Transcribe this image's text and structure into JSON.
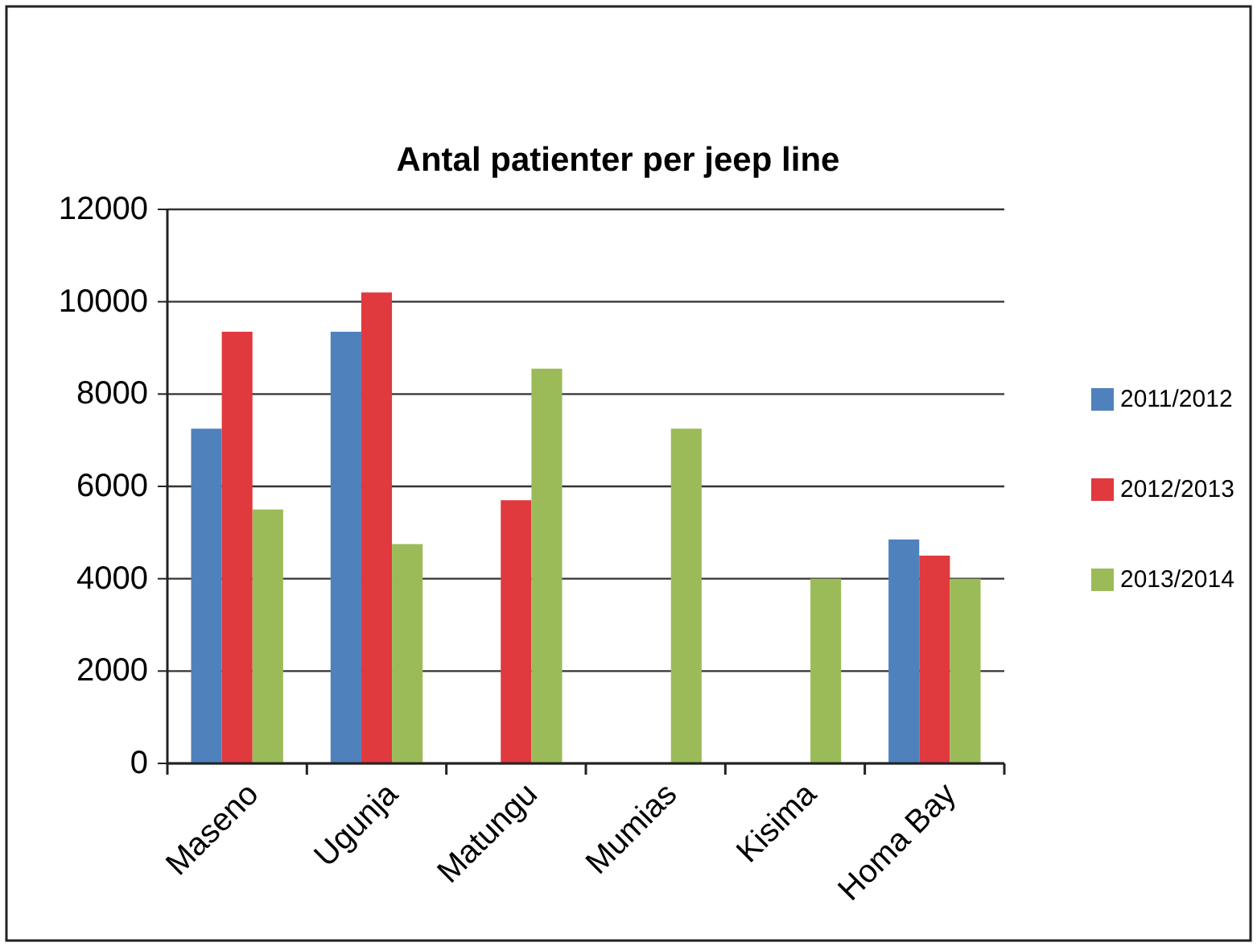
{
  "chart_data": {
    "type": "bar",
    "title": "Antal patienter per jeep line",
    "categories": [
      "Maseno",
      "Ugunja",
      "Matungu",
      "Mumias",
      "Kisima",
      "Homa Bay"
    ],
    "series": [
      {
        "name": "2011/2012",
        "color": "#4f81bd",
        "values": [
          7250,
          9350,
          null,
          null,
          null,
          4850
        ]
      },
      {
        "name": "2012/2013",
        "color": "#e0393e",
        "values": [
          9350,
          10200,
          5700,
          null,
          null,
          4500
        ]
      },
      {
        "name": "2013/2014",
        "color": "#9bbb59",
        "values": [
          5500,
          4750,
          8550,
          7250,
          4000,
          4000
        ]
      }
    ],
    "ylim": [
      0,
      12000
    ],
    "yticks": [
      0,
      2000,
      4000,
      6000,
      8000,
      10000,
      12000
    ],
    "grid": "y",
    "legend": "right"
  }
}
